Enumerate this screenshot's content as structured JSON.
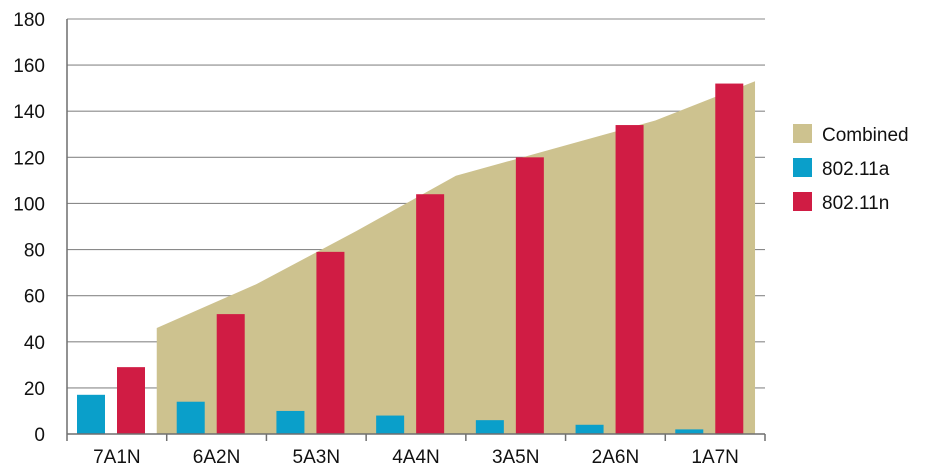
{
  "chart_data": {
    "type": "bar",
    "title": "",
    "xlabel": "",
    "ylabel": "",
    "categories": [
      "7A1N",
      "6A2N",
      "5A3N",
      "4A4N",
      "3A5N",
      "2A6N",
      "1A7N"
    ],
    "ylim": [
      0,
      180
    ],
    "yticks": [
      0,
      20,
      40,
      60,
      80,
      100,
      120,
      140,
      160,
      180
    ],
    "grid": "horizontal",
    "legend_position": "right",
    "series": [
      {
        "name": "Combined",
        "kind": "area",
        "color": "#cdc28f",
        "values": [
          46,
          65,
          88,
          112,
          124,
          136,
          153
        ]
      },
      {
        "name": "802.11a",
        "kind": "bar",
        "color": "#0a9fca",
        "values": [
          17,
          14,
          10,
          8,
          6,
          4,
          2
        ]
      },
      {
        "name": "802.11n",
        "kind": "bar",
        "color": "#d01c44",
        "values": [
          29,
          52,
          79,
          104,
          120,
          134,
          152
        ]
      }
    ]
  }
}
